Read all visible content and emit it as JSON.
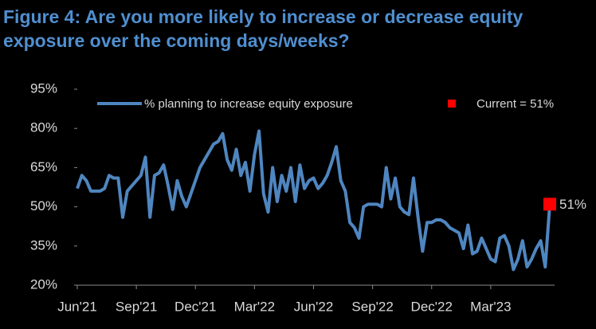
{
  "chart_data": {
    "type": "line",
    "title": "Figure 4: Are you more likely to increase or decrease equity exposure over the coming days/weeks?",
    "categories": [
      "Jun'21",
      null,
      null,
      null,
      null,
      null,
      null,
      null,
      null,
      null,
      null,
      null,
      null,
      "Sep'21",
      null,
      null,
      null,
      null,
      null,
      null,
      null,
      null,
      null,
      null,
      null,
      null,
      "Dec'21",
      null,
      null,
      null,
      null,
      null,
      null,
      null,
      null,
      null,
      null,
      null,
      null,
      "Mar'22",
      null,
      null,
      null,
      null,
      null,
      null,
      null,
      null,
      null,
      null,
      null,
      null,
      "Jun'22",
      null,
      null,
      null,
      null,
      null,
      null,
      null,
      null,
      null,
      null,
      null,
      null,
      "Sep'22",
      null,
      null,
      null,
      null,
      null,
      null,
      null,
      null,
      null,
      null,
      null,
      null,
      "Dec'22",
      null,
      null,
      null,
      null,
      null,
      null,
      null,
      null,
      null,
      null,
      null,
      null,
      "Mar'23",
      null,
      null,
      null,
      null,
      null,
      null,
      null,
      null,
      null,
      null,
      null,
      null,
      null
    ],
    "series": [
      {
        "name": "% planning to increase equity exposure",
        "color": "#4f86c0",
        "values": [
          57,
          62,
          60,
          56,
          56,
          56,
          57,
          62,
          61,
          61,
          46,
          56,
          58,
          60,
          62,
          69,
          46,
          62,
          63,
          66,
          58,
          49,
          60,
          54,
          50,
          55,
          60,
          65,
          68,
          71,
          74,
          75,
          78,
          68,
          64,
          72,
          62,
          67,
          56,
          70,
          79,
          55,
          48,
          65,
          52,
          62,
          56,
          65,
          52,
          66,
          57,
          60,
          61,
          57,
          59,
          62,
          67,
          73,
          60,
          56,
          44,
          42,
          38,
          50,
          51,
          51,
          51,
          50,
          65,
          53,
          61,
          50,
          48,
          47,
          61,
          46,
          33,
          44,
          44,
          45,
          45,
          44,
          42,
          41,
          40,
          34,
          43,
          32,
          33,
          38,
          34,
          30,
          29,
          38,
          39,
          35,
          26,
          30,
          37,
          27,
          30,
          34,
          37,
          27,
          51
        ]
      }
    ],
    "current": {
      "name": "Current = 51%",
      "value": 51,
      "label": "51%",
      "color": "#ff0000"
    },
    "ylim": [
      20,
      95
    ],
    "yticks": [
      {
        "value": 20,
        "label": "20%"
      },
      {
        "value": 35,
        "label": "35%"
      },
      {
        "value": 50,
        "label": "50%"
      },
      {
        "value": 65,
        "label": "65%"
      },
      {
        "value": 80,
        "label": "80%"
      },
      {
        "value": 95,
        "label": "95%"
      }
    ],
    "grid": false
  }
}
